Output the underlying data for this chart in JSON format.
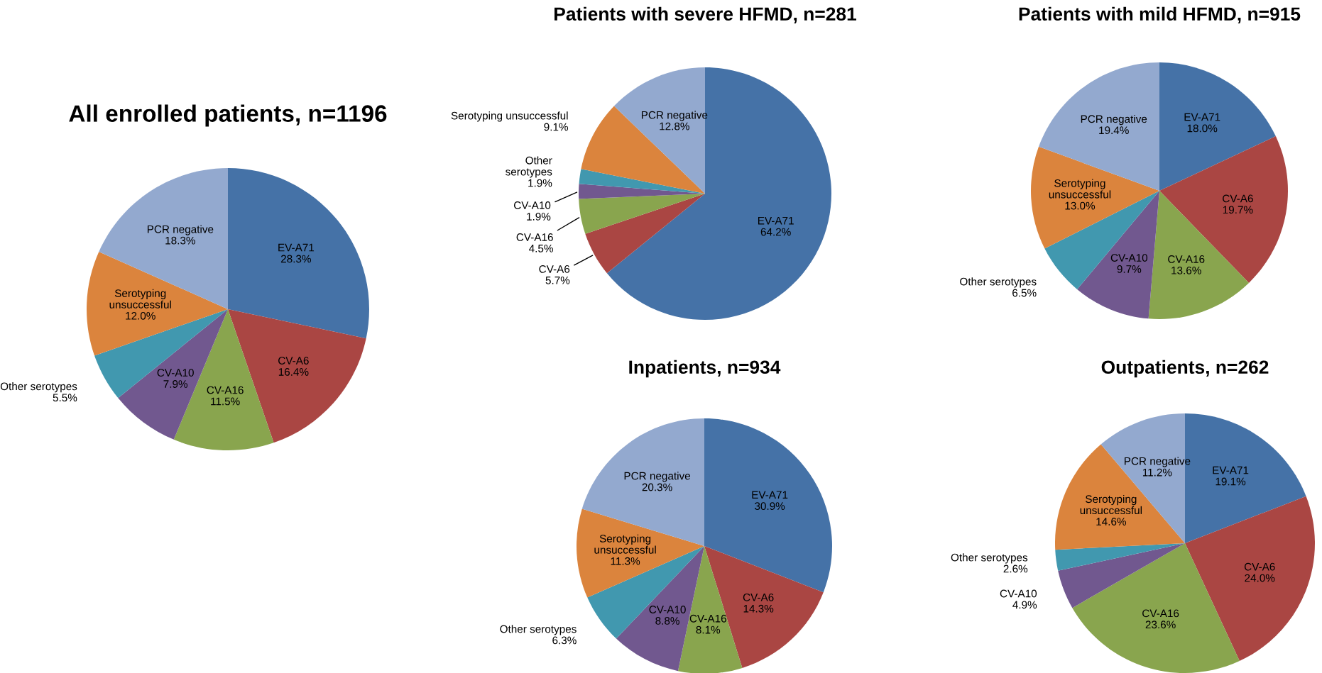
{
  "chart_data": [
    {
      "type": "pie",
      "title": "All enrolled patients, n=1196",
      "categories": [
        "EV-A71",
        "CV-A6",
        "CV-A16",
        "CV-A10",
        "Other serotypes",
        "Serotyping\nunsuccessful",
        "PCR negative"
      ],
      "values": [
        28.3,
        16.4,
        11.5,
        7.9,
        5.5,
        12.0,
        18.3
      ],
      "value_labels": [
        "28.3%",
        "16.4%",
        "11.5%",
        "7.9%",
        "5.5%",
        "12.0%",
        "18.3%"
      ],
      "colors": [
        "#4572a7",
        "#aa4643",
        "#89a54e",
        "#71588f",
        "#4198af",
        "#db843d",
        "#93a9cf"
      ]
    },
    {
      "type": "pie",
      "title": "Patients with severe HFMD, n=281",
      "categories": [
        "EV-A71",
        "CV-A6",
        "CV-A16",
        "CV-A10",
        "Other\nserotypes",
        "Serotyping unsuccessful",
        "PCR negative"
      ],
      "values": [
        64.2,
        5.7,
        4.5,
        1.9,
        1.9,
        9.1,
        12.8
      ],
      "value_labels": [
        "64.2%",
        "5.7%",
        "4.5%",
        "1.9%",
        "1.9%",
        "9.1%",
        "12.8%"
      ],
      "colors": [
        "#4572a7",
        "#aa4643",
        "#89a54e",
        "#71588f",
        "#4198af",
        "#db843d",
        "#93a9cf"
      ]
    },
    {
      "type": "pie",
      "title": "Patients with mild HFMD, n=915",
      "categories": [
        "EV-A71",
        "CV-A6",
        "CV-A16",
        "CV-A10",
        "Other serotypes",
        "Serotyping\nunsuccessful",
        "PCR negative"
      ],
      "values": [
        18.0,
        19.7,
        13.6,
        9.7,
        6.5,
        13.0,
        19.4
      ],
      "value_labels": [
        "18.0%",
        "19.7%",
        "13.6%",
        "9.7%",
        "6.5%",
        "13.0%",
        "19.4%"
      ],
      "colors": [
        "#4572a7",
        "#aa4643",
        "#89a54e",
        "#71588f",
        "#4198af",
        "#db843d",
        "#93a9cf"
      ]
    },
    {
      "type": "pie",
      "title": "Inpatients, n=934",
      "categories": [
        "EV-A71",
        "CV-A6",
        "CV-A16",
        "CV-A10",
        "Other serotypes",
        "Serotyping\nunsuccessful",
        "PCR negative"
      ],
      "values": [
        30.9,
        14.3,
        8.1,
        8.8,
        6.3,
        11.3,
        20.3
      ],
      "value_labels": [
        "30.9%",
        "14.3%",
        "8.1%",
        "8.8%",
        "6.3%",
        "11.3%",
        "20.3%"
      ],
      "colors": [
        "#4572a7",
        "#aa4643",
        "#89a54e",
        "#71588f",
        "#4198af",
        "#db843d",
        "#93a9cf"
      ]
    },
    {
      "type": "pie",
      "title": "Outpatients, n=262",
      "categories": [
        "EV-A71",
        "CV-A6",
        "CV-A16",
        "CV-A10",
        "Other serotypes",
        "Serotyping\nunsuccessful",
        "PCR negative"
      ],
      "values": [
        19.1,
        24.0,
        23.6,
        4.9,
        2.6,
        14.6,
        11.2
      ],
      "value_labels": [
        "19.1%",
        "24.0%",
        "23.6%",
        "4.9%",
        "2.6%",
        "14.6%",
        "11.2%"
      ],
      "colors": [
        "#4572a7",
        "#aa4643",
        "#89a54e",
        "#71588f",
        "#4198af",
        "#db843d",
        "#93a9cf"
      ]
    }
  ]
}
